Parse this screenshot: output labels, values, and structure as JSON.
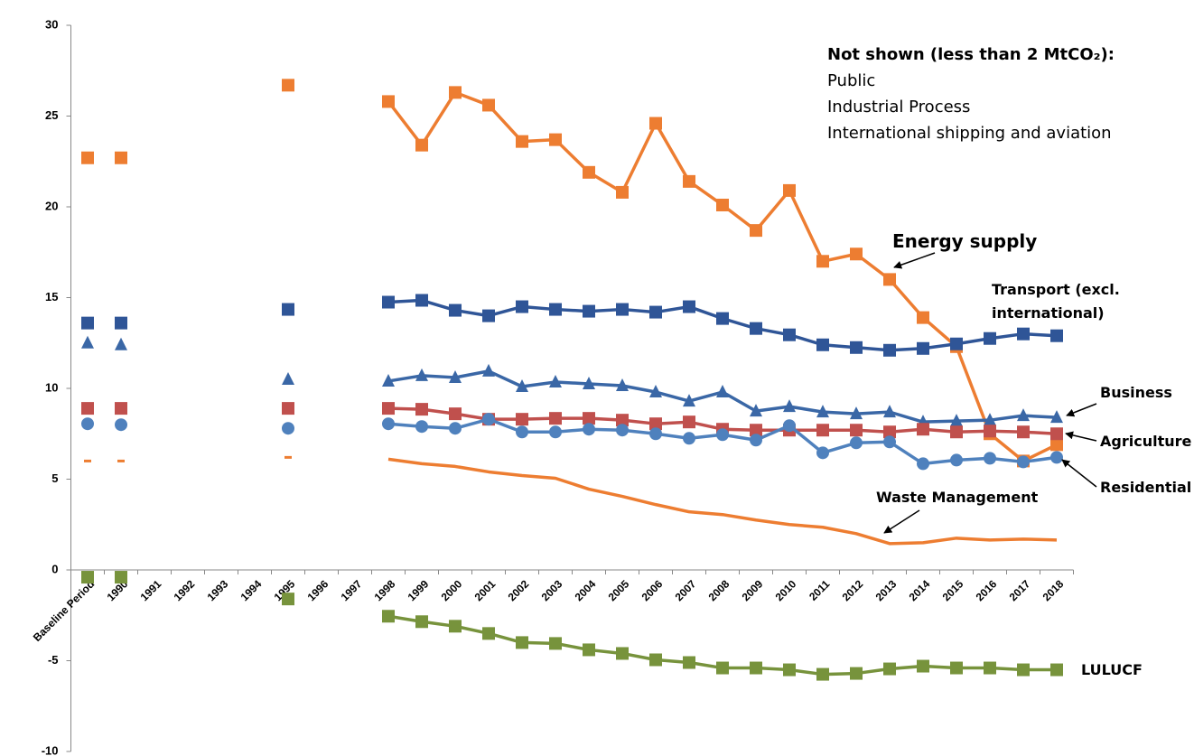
{
  "chart_data": {
    "type": "line",
    "note_title": "Not shown (less than 2 MtCO₂):",
    "note_items": [
      "Public",
      "Industrial Process",
      "International shipping and aviation"
    ],
    "categories": [
      "Baseline Period",
      "1990",
      "1991",
      "1992",
      "1993",
      "1994",
      "1995",
      "1996",
      "1997",
      "1998",
      "1999",
      "2000",
      "2001",
      "2002",
      "2003",
      "2004",
      "2005",
      "2006",
      "2007",
      "2008",
      "2009",
      "2010",
      "2011",
      "2012",
      "2013",
      "2014",
      "2015",
      "2016",
      "2017",
      "2018"
    ],
    "ylim": [
      -10,
      30
    ],
    "yticks": [
      -10,
      -5,
      0,
      5,
      10,
      15,
      20,
      25,
      30
    ],
    "grid": false,
    "series": [
      {
        "name": "Energy supply",
        "color": "#ED7D31",
        "marker": "square",
        "values": [
          22.7,
          22.7,
          null,
          null,
          null,
          null,
          26.7,
          null,
          null,
          25.8,
          23.4,
          26.3,
          25.6,
          23.6,
          23.7,
          21.9,
          20.8,
          24.6,
          21.4,
          20.1,
          18.7,
          20.9,
          17.0,
          17.4,
          16.0,
          13.9,
          12.3,
          7.5,
          6.0,
          6.9
        ]
      },
      {
        "name": "Transport (excl. international)",
        "color": "#2F5597",
        "marker": "square",
        "values": [
          13.6,
          13.6,
          null,
          null,
          null,
          null,
          14.35,
          null,
          null,
          14.75,
          14.85,
          14.3,
          14.0,
          14.5,
          14.35,
          14.25,
          14.35,
          14.2,
          14.5,
          13.85,
          13.3,
          12.95,
          12.4,
          12.25,
          12.1,
          12.2,
          12.45,
          12.75,
          13.0,
          12.9
        ]
      },
      {
        "name": "Business",
        "color": "#3A67A6",
        "marker": "triangle",
        "values": [
          12.5,
          12.4,
          null,
          null,
          null,
          null,
          10.5,
          null,
          null,
          10.4,
          10.7,
          10.6,
          10.95,
          10.1,
          10.35,
          10.25,
          10.15,
          9.8,
          9.3,
          9.8,
          8.75,
          9.0,
          8.7,
          8.6,
          8.7,
          8.15,
          8.2,
          8.25,
          8.5,
          8.4
        ]
      },
      {
        "name": "Agriculture",
        "color": "#C0504D",
        "marker": "square",
        "values": [
          8.9,
          8.9,
          null,
          null,
          null,
          null,
          8.9,
          null,
          null,
          8.9,
          8.85,
          8.6,
          8.3,
          8.3,
          8.35,
          8.35,
          8.25,
          8.05,
          8.15,
          7.75,
          7.7,
          7.7,
          7.7,
          7.7,
          7.6,
          7.75,
          7.6,
          7.65,
          7.6,
          7.5
        ]
      },
      {
        "name": "Residential",
        "color": "#4F81BD",
        "marker": "circle",
        "values": [
          8.05,
          8.0,
          null,
          null,
          null,
          null,
          7.8,
          null,
          null,
          8.05,
          7.9,
          7.8,
          8.3,
          7.6,
          7.6,
          7.75,
          7.7,
          7.5,
          7.25,
          7.45,
          7.15,
          7.95,
          6.45,
          7.0,
          7.05,
          5.85,
          6.05,
          6.15,
          5.95,
          6.2
        ]
      },
      {
        "name": "Waste Management",
        "color": "#ED7D31",
        "marker": "dash",
        "values": [
          6.0,
          6.0,
          null,
          null,
          null,
          null,
          6.2,
          null,
          null,
          6.1,
          5.85,
          5.7,
          5.4,
          5.2,
          5.05,
          4.45,
          4.05,
          3.6,
          3.2,
          3.05,
          2.75,
          2.5,
          2.35,
          2.0,
          1.45,
          1.5,
          1.75,
          1.65,
          1.7,
          1.65
        ]
      },
      {
        "name": "LULUCF",
        "color": "#77933C",
        "marker": "square",
        "values": [
          -0.4,
          -0.4,
          null,
          null,
          null,
          null,
          -1.6,
          null,
          null,
          -2.55,
          -2.85,
          -3.1,
          -3.5,
          -4.0,
          -4.05,
          -4.4,
          -4.6,
          -4.95,
          -5.1,
          -5.4,
          -5.4,
          -5.5,
          -5.75,
          -5.7,
          -5.45,
          -5.3,
          -5.4,
          -5.4,
          -5.5,
          -5.5
        ]
      }
    ]
  }
}
